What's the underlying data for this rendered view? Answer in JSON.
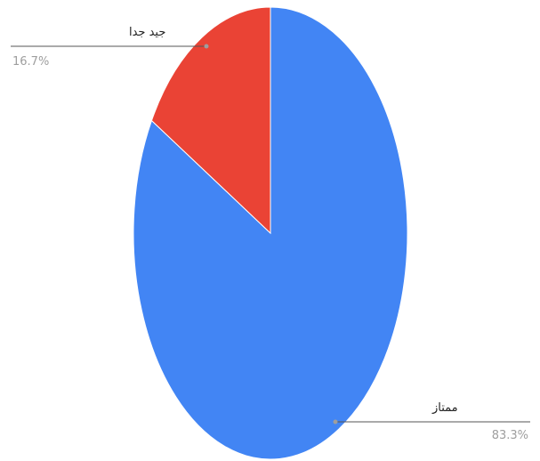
{
  "chart_data": {
    "type": "pie",
    "slices": [
      {
        "label": "ممتاز",
        "value": 83.3,
        "value_label": "83.3%",
        "color": "#4285f4"
      },
      {
        "label": "جيد جدا",
        "value": 16.7,
        "value_label": "16.7%",
        "color": "#ea4335"
      }
    ],
    "start_angle": "12 o'clock",
    "direction": "clockwise",
    "legend": "none",
    "labels": "outside with leader lines"
  }
}
